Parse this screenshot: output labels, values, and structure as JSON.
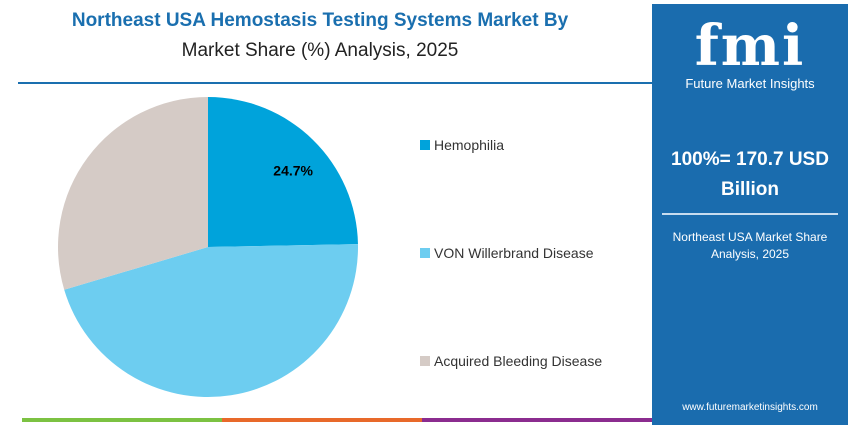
{
  "header": {
    "title_line1": "Northeast USA Hemostasis Testing Systems Market By",
    "title_line2": "Market Share (%) Analysis, 2025"
  },
  "chart_data": {
    "type": "pie",
    "categories": [
      "Hemophilia",
      "VON Willerbrand Disease",
      "Acquired Bleeding Disease"
    ],
    "values": [
      24.7,
      45.7,
      29.6
    ],
    "colors": [
      "#00a3db",
      "#6dcdf0",
      "#d5cbc6"
    ],
    "data_labels": [
      "24.7%",
      "",
      ""
    ],
    "legend_placement": "right"
  },
  "panel": {
    "logo": "fmi",
    "logo_text": "Future Market Insights",
    "total": "100%= 170.7 USD Billion",
    "subtitle": "Northeast USA Market Share Analysis, 2025",
    "url": "www.futuremarketinsights.com",
    "color": "#1a6cae"
  }
}
